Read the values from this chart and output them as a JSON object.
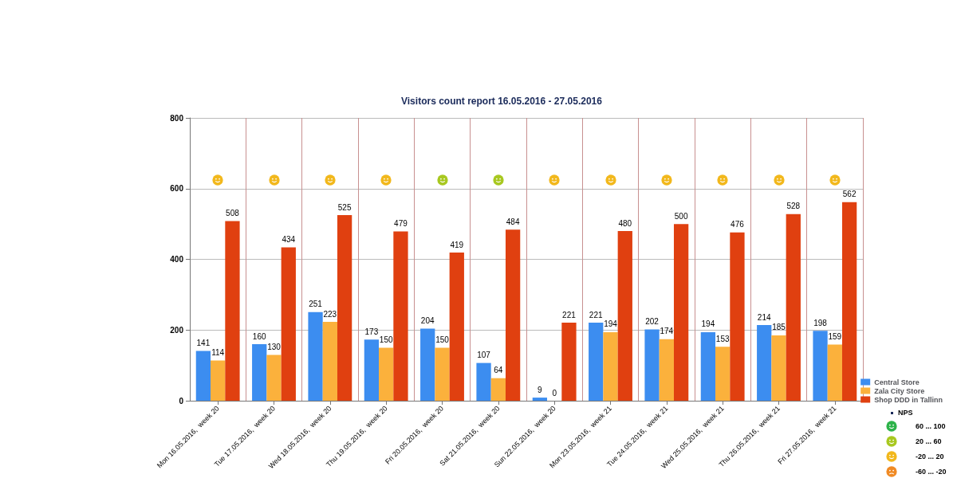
{
  "chart_data": {
    "type": "bar",
    "title": "Visitors count report 16.05.2016 - 27.05.2016",
    "categories": [
      "Mon 16.05.2016,  week 20",
      "Tue 17.05.2016,  week 20",
      "Wed 18.05.2016,  week 20",
      "Thu 19.05.2016,  week 20",
      "Fri 20.05.2016,  week 20",
      "Sat 21.05.2016,  week 20",
      "Sun 22.05.2016,  week 20",
      "Mon 23.05.2016,  week 21",
      "Tue 24.05.2016,  week 21",
      "Wed 25.05.2016,  week 21",
      "Thu 26.05.2016,  week 21",
      "Fri 27.05.2016,  week 21"
    ],
    "series": [
      {
        "name": "Central Store",
        "color": "#3c8df0",
        "values": [
          141,
          160,
          251,
          173,
          204,
          107,
          9,
          221,
          202,
          194,
          214,
          198
        ]
      },
      {
        "name": "Zala City Store",
        "color": "#fbb13c",
        "values": [
          114,
          130,
          223,
          150,
          150,
          64,
          0,
          194,
          174,
          153,
          185,
          159
        ]
      },
      {
        "name": "Shop DDD in Tallinn",
        "color": "#e04010",
        "values": [
          508,
          434,
          525,
          479,
          419,
          484,
          221,
          480,
          500,
          476,
          528,
          562
        ]
      }
    ],
    "ylim": [
      0,
      800
    ],
    "yticks": [
      0,
      200,
      400,
      600,
      800
    ],
    "grid": true,
    "legend": "bottom right",
    "data_labels": true,
    "annotations": [
      "NPS",
      "60 ... 100",
      "20 ... 60",
      "-20 ... 20",
      "-60 ... -20"
    ]
  }
}
